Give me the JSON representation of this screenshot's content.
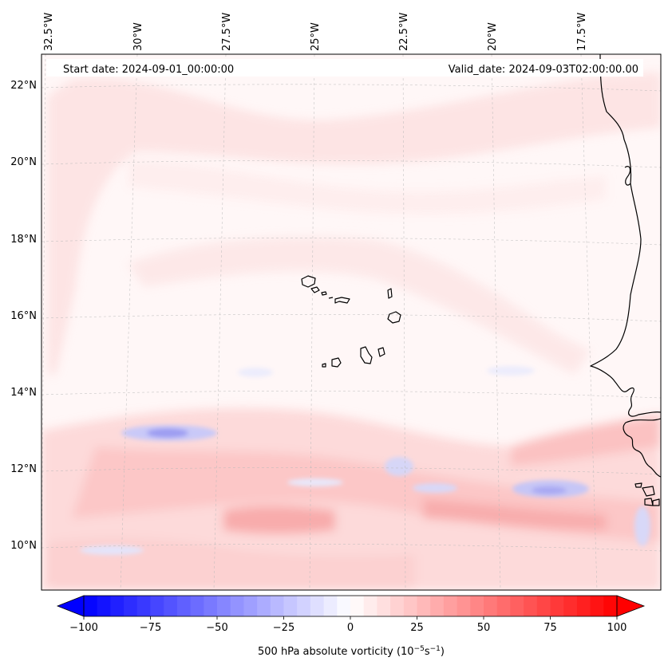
{
  "map": {
    "start_date_label": "Start date: 2024-09-01_00:00:00",
    "valid_date_label": "Valid_date: 2024-09-03T02:00:00.00",
    "lon_labels": [
      "32.5°W",
      "30°W",
      "27.5°W",
      "25°W",
      "22.5°W",
      "20°W",
      "17.5°W"
    ],
    "lat_labels": [
      "22°N",
      "20°N",
      "18°N",
      "16°N",
      "14°N",
      "12°N",
      "10°N"
    ],
    "gridlines": true,
    "field_palette": "bwr",
    "land_features": [
      "Cape Verde islands",
      "West African coastline"
    ]
  },
  "colorbar": {
    "label_text": "500 hPa absolute vorticity (10",
    "label_exp1": "−5",
    "label_mid": "s",
    "label_exp2": "−1",
    "label_end": ")",
    "min": -100,
    "max": 100,
    "extend": "both",
    "ticks": [
      "−100",
      "−75",
      "−50",
      "−25",
      "0",
      "25",
      "50",
      "75",
      "100"
    ],
    "negative_color": "#0000ff",
    "positive_color": "#ff0000"
  }
}
